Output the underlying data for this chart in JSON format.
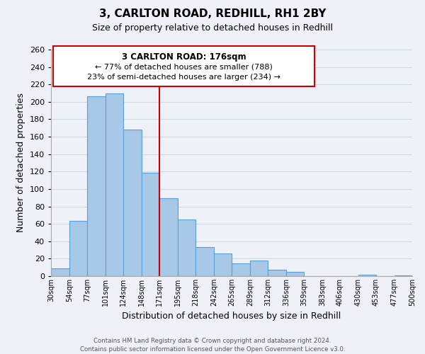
{
  "title": "3, CARLTON ROAD, REDHILL, RH1 2BY",
  "subtitle": "Size of property relative to detached houses in Redhill",
  "xlabel": "Distribution of detached houses by size in Redhill",
  "ylabel": "Number of detached properties",
  "bin_edges": [
    30,
    54,
    77,
    101,
    124,
    148,
    171,
    195,
    218,
    242,
    265,
    289,
    312,
    336,
    359,
    383,
    406,
    430,
    453,
    477,
    500
  ],
  "bar_heights": [
    9,
    63,
    206,
    210,
    168,
    119,
    89,
    65,
    33,
    26,
    15,
    18,
    7,
    5,
    0,
    0,
    0,
    2,
    0,
    1
  ],
  "bar_color": "#a8c8e8",
  "bar_edge_color": "#5a9fd4",
  "grid_color": "#d0d8e8",
  "vline_x": 171,
  "vline_color": "#cc0000",
  "annotation_title": "3 CARLTON ROAD: 176sqm",
  "annotation_line1": "← 77% of detached houses are smaller (788)",
  "annotation_line2": "23% of semi-detached houses are larger (234) →",
  "annotation_box_color": "#ffffff",
  "annotation_box_edge": "#cc0000",
  "ylim": [
    0,
    260
  ],
  "xlim": [
    30,
    500
  ],
  "yticks": [
    0,
    20,
    40,
    60,
    80,
    100,
    120,
    140,
    160,
    180,
    200,
    220,
    240,
    260
  ],
  "footer1": "Contains HM Land Registry data © Crown copyright and database right 2024.",
  "footer2": "Contains public sector information licensed under the Open Government Licence v3.0.",
  "tick_labels": [
    "30sqm",
    "54sqm",
    "77sqm",
    "101sqm",
    "124sqm",
    "148sqm",
    "171sqm",
    "195sqm",
    "218sqm",
    "242sqm",
    "265sqm",
    "289sqm",
    "312sqm",
    "336sqm",
    "359sqm",
    "383sqm",
    "406sqm",
    "430sqm",
    "453sqm",
    "477sqm",
    "500sqm"
  ],
  "background_color": "#eef2f8"
}
